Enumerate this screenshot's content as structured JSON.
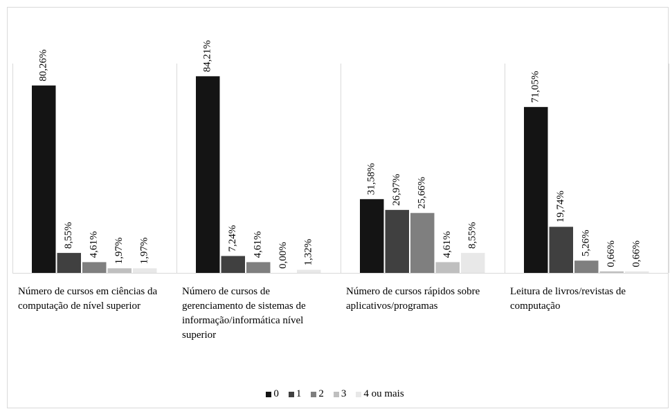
{
  "chart_data": {
    "type": "bar",
    "categories": [
      "Número de cursos em ciências da computação de nível superior",
      "Número de cursos de gerenciamento de sistemas de informação/informática nível superior",
      "Número de cursos rápidos sobre aplicativos/programas",
      "Leitura de livros/revistas de computação"
    ],
    "series": [
      {
        "name": "0",
        "color": "#141414",
        "values": [
          80.26,
          84.21,
          31.58,
          71.05
        ],
        "value_labels": [
          "80,26%",
          "84,21%",
          "31,58%",
          "71,05%"
        ]
      },
      {
        "name": "1",
        "color": "#404040",
        "values": [
          8.55,
          7.24,
          26.97,
          19.74
        ],
        "value_labels": [
          "8,55%",
          "7,24%",
          "26,97%",
          "19,74%"
        ]
      },
      {
        "name": "2",
        "color": "#7f7f7f",
        "values": [
          4.61,
          4.61,
          25.66,
          5.26
        ],
        "value_labels": [
          "4,61%",
          "4,61%",
          "25,66%",
          "5,26%"
        ]
      },
      {
        "name": "3",
        "color": "#bfbfbf",
        "values": [
          1.97,
          0.0,
          4.61,
          0.66
        ],
        "value_labels": [
          "1,97%",
          "0,00%",
          "4,61%",
          "0,66%"
        ]
      },
      {
        "name": "4 ou mais",
        "color": "#e8e8e8",
        "values": [
          1.97,
          1.32,
          8.55,
          0.66
        ],
        "value_labels": [
          "1,97%",
          "1,32%",
          "8,55%",
          "0,66%"
        ]
      }
    ],
    "ylim": [
      0,
      100
    ],
    "legend": "bottom"
  }
}
